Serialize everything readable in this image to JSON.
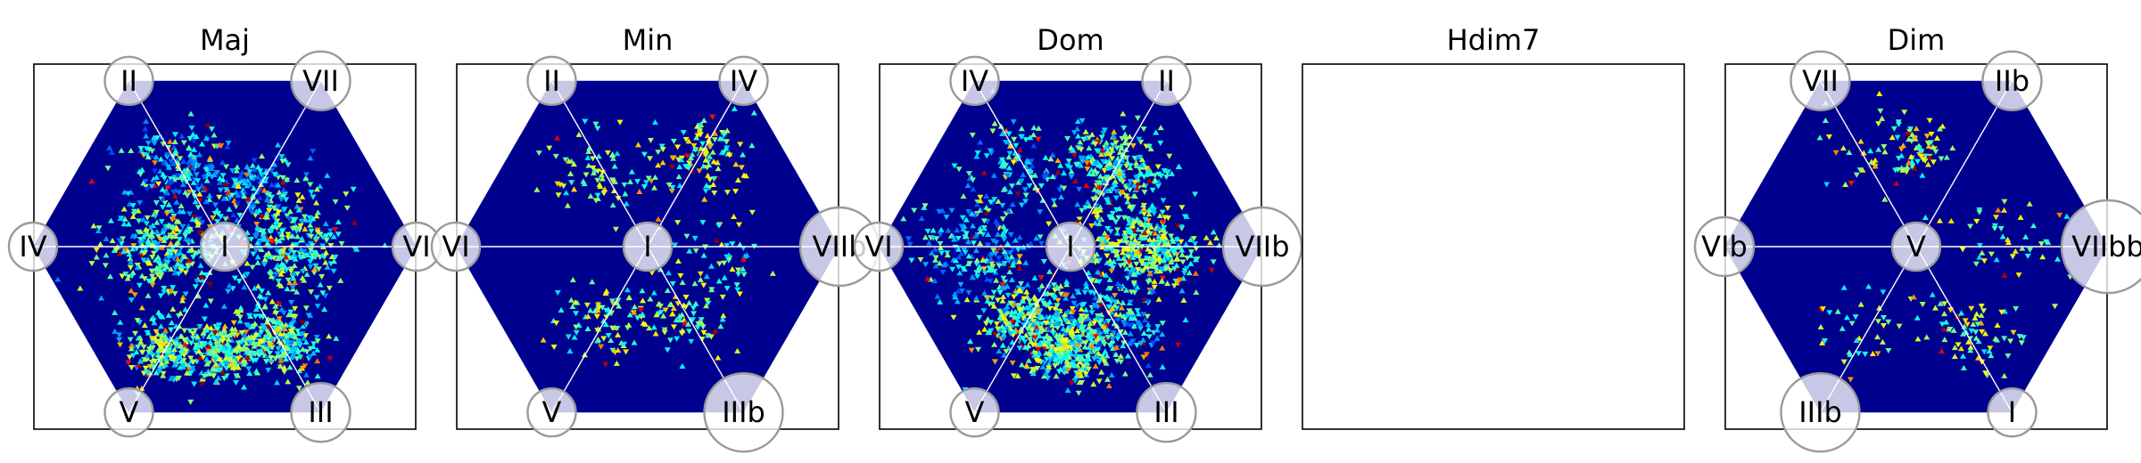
{
  "chart_data": [
    {
      "type": "heatmap",
      "title": "Maj",
      "nodes": {
        "center": "I",
        "top_left": "II",
        "top_right": "VII",
        "left": "IV",
        "right": "VI",
        "bottom_left": "V",
        "bottom_right": "III"
      },
      "hotspots": [
        {
          "toward": "left",
          "dist": 0.32,
          "spread": 0.3,
          "count": 320,
          "level": 0.45
        },
        {
          "toward": "right",
          "dist": 0.32,
          "spread": 0.28,
          "count": 300,
          "level": 0.45
        },
        {
          "toward": "bottom_left",
          "dist": 0.62,
          "spread": 0.18,
          "count": 220,
          "level": 0.5
        },
        {
          "toward": "bottom_right",
          "dist": 0.56,
          "spread": 0.2,
          "count": 260,
          "level": 0.45
        },
        {
          "toward": "bottom",
          "dist": 0.55,
          "spread": 0.16,
          "count": 220,
          "level": 0.5
        },
        {
          "toward": "top_left",
          "dist": 0.45,
          "spread": 0.25,
          "count": 200,
          "level": 0.3
        },
        {
          "toward": "top_right",
          "dist": 0.35,
          "spread": 0.22,
          "count": 120,
          "level": 0.3
        }
      ]
    },
    {
      "type": "heatmap",
      "title": "Min",
      "nodes": {
        "center": "I",
        "top_left": "II",
        "top_right": "IV",
        "left": "VI",
        "right": "VIIb",
        "bottom_left": "V",
        "bottom_right": "IIIb"
      },
      "hotspots": [
        {
          "toward": "top_right",
          "dist": 0.55,
          "spread": 0.22,
          "count": 110,
          "level": 0.6
        },
        {
          "toward": "top_left",
          "dist": 0.45,
          "spread": 0.25,
          "count": 80,
          "level": 0.6
        },
        {
          "toward": "bottom_left",
          "dist": 0.45,
          "spread": 0.25,
          "count": 90,
          "level": 0.6
        },
        {
          "toward": "bottom_right",
          "dist": 0.4,
          "spread": 0.25,
          "count": 90,
          "level": 0.6
        },
        {
          "toward": "right",
          "dist": 0.4,
          "spread": 0.2,
          "count": 40,
          "level": 0.55
        }
      ]
    },
    {
      "type": "heatmap",
      "title": "Dom",
      "nodes": {
        "center": "I",
        "top_left": "IV",
        "top_right": "II",
        "left": "VI",
        "right": "VIIb",
        "bottom_left": "V",
        "bottom_right": "III"
      },
      "hotspots": [
        {
          "toward": "right",
          "dist": 0.4,
          "spread": 0.25,
          "count": 380,
          "level": 0.55
        },
        {
          "toward": "top_right",
          "dist": 0.45,
          "spread": 0.25,
          "count": 280,
          "level": 0.45
        },
        {
          "toward": "bottom_left",
          "dist": 0.45,
          "spread": 0.25,
          "count": 300,
          "level": 0.5
        },
        {
          "toward": "bottom",
          "dist": 0.55,
          "spread": 0.18,
          "count": 260,
          "level": 0.5
        },
        {
          "toward": "left",
          "dist": 0.45,
          "spread": 0.3,
          "count": 220,
          "level": 0.35
        },
        {
          "toward": "bottom_right",
          "dist": 0.45,
          "spread": 0.25,
          "count": 200,
          "level": 0.35
        },
        {
          "toward": "top_left",
          "dist": 0.5,
          "spread": 0.25,
          "count": 120,
          "level": 0.35
        }
      ]
    },
    {
      "type": "heatmap",
      "title": "Hdim7",
      "empty": true
    },
    {
      "type": "heatmap",
      "title": "Dim",
      "nodes": {
        "center": "V",
        "top_left": "VII",
        "top_right": "IIb",
        "left": "VIb",
        "right": "VIIbb",
        "bottom_left": "IIIb",
        "bottom_right": "I"
      },
      "hotspots": [
        {
          "toward": "top",
          "dist": 0.5,
          "spread": 0.14,
          "count": 60,
          "level": 0.65
        },
        {
          "toward": "bottom_right",
          "dist": 0.55,
          "spread": 0.25,
          "count": 70,
          "level": 0.6
        },
        {
          "toward": "top_left",
          "dist": 0.5,
          "spread": 0.3,
          "count": 40,
          "level": 0.6
        },
        {
          "toward": "bottom_left",
          "dist": 0.5,
          "spread": 0.3,
          "count": 40,
          "level": 0.6
        },
        {
          "toward": "right",
          "dist": 0.5,
          "spread": 0.3,
          "count": 45,
          "level": 0.6
        }
      ]
    }
  ],
  "colors": {
    "background": "#00008f",
    "node_fill": "#ffffff",
    "node_stroke": "#9a9a9a",
    "axis_lines": "#ffffff",
    "colormap": "jet"
  }
}
